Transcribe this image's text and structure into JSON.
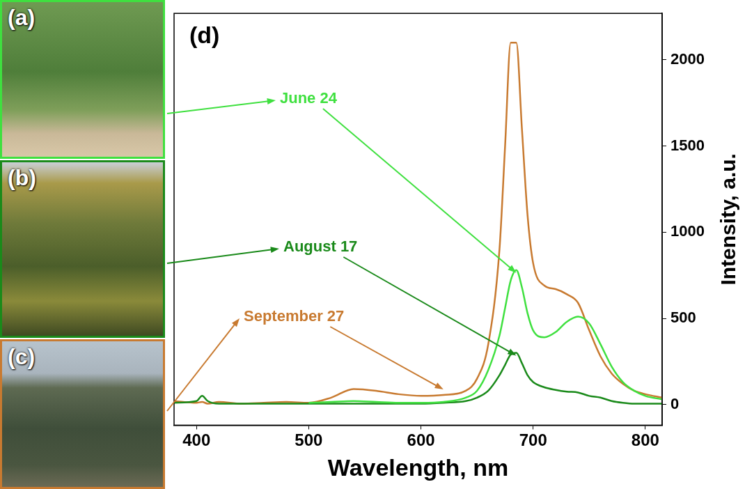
{
  "chart_data": {
    "type": "line",
    "panel_label": "(d)",
    "x_label": "Wavelength, nm",
    "y_label": "Intensity, a.u.",
    "x": [
      380,
      400,
      405,
      410,
      420,
      440,
      460,
      480,
      500,
      520,
      540,
      560,
      580,
      600,
      620,
      640,
      650,
      660,
      670,
      675,
      680,
      685,
      690,
      695,
      700,
      710,
      720,
      730,
      740,
      750,
      760,
      770,
      780,
      790,
      800,
      815
    ],
    "series": [
      {
        "name": "June 24",
        "color": "#3fe03f",
        "values": [
          null,
          null,
          null,
          null,
          null,
          null,
          null,
          null,
          10,
          15,
          20,
          15,
          10,
          10,
          15,
          40,
          80,
          200,
          400,
          560,
          720,
          780,
          680,
          530,
          430,
          390,
          420,
          480,
          510,
          470,
          350,
          220,
          130,
          80,
          50,
          30
        ]
      },
      {
        "name": "August 17",
        "color": "#1a8a1a",
        "values": [
          10,
          20,
          50,
          20,
          5,
          5,
          5,
          5,
          5,
          5,
          5,
          5,
          5,
          5,
          10,
          20,
          40,
          80,
          170,
          230,
          290,
          300,
          240,
          170,
          130,
          100,
          85,
          75,
          70,
          50,
          40,
          20,
          10,
          5,
          5,
          5
        ]
      },
      {
        "name": "September 27",
        "color": "#c87a30",
        "values": [
          20,
          10,
          15,
          5,
          15,
          5,
          10,
          15,
          10,
          40,
          90,
          80,
          60,
          50,
          55,
          80,
          150,
          350,
          900,
          1500,
          2100,
          2100,
          1600,
          1100,
          820,
          690,
          670,
          640,
          590,
          430,
          280,
          180,
          120,
          80,
          60,
          40
        ]
      }
    ],
    "xlim": [
      380,
      815
    ],
    "xticks": [
      400,
      500,
      600,
      700,
      800
    ],
    "ylim": [
      -120,
      2270
    ],
    "yticks": [
      0,
      500,
      1000,
      1500,
      2000
    ],
    "grid": false
  },
  "panels": [
    {
      "label": "(a)",
      "color": "#3fe03f"
    },
    {
      "label": "(b)",
      "color": "#1a8a1a"
    },
    {
      "label": "(c)",
      "color": "#c87a30"
    }
  ]
}
